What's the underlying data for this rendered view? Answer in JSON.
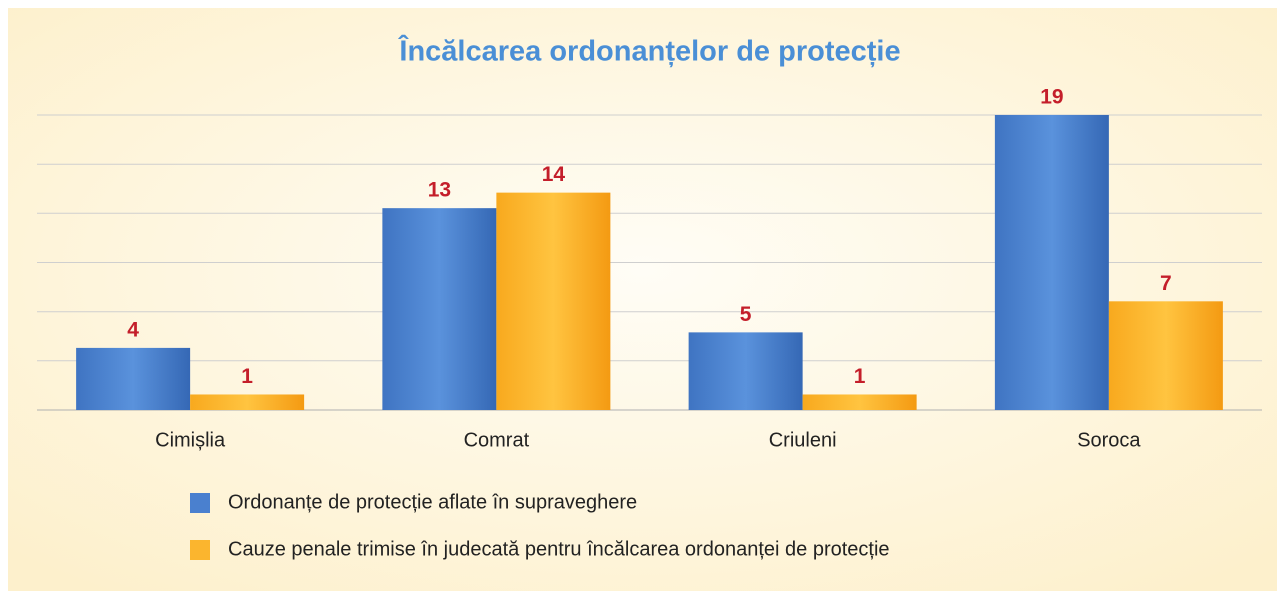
{
  "chart_data": {
    "type": "bar",
    "title": "Încălcarea ordonanțelor de protecție",
    "categories": [
      "Cimișlia",
      "Comrat",
      "Criuleni",
      "Soroca"
    ],
    "series": [
      {
        "name": "Ordonanțe de protecție aflate în supraveghere",
        "color": "#4a80cf",
        "values": [
          4,
          13,
          5,
          19
        ]
      },
      {
        "name": "Cauze penale trimise în judecată pentru încălcarea ordonanței de protecție",
        "color": "#fbb52e",
        "values": [
          1,
          14,
          1,
          7
        ]
      }
    ],
    "ylim": [
      0,
      19
    ],
    "yticks": [
      0,
      3.17,
      6.33,
      9.5,
      12.67,
      15.83,
      19
    ],
    "grid": true
  }
}
